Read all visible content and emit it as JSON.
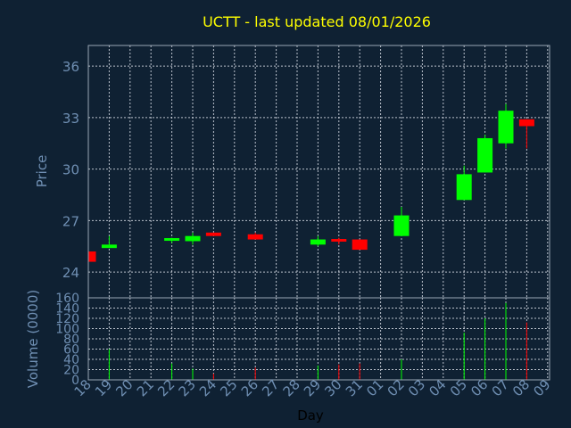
{
  "chart_data": {
    "type": "candlestick",
    "title": "UCTT - last updated 08/01/2026",
    "colors": {
      "background": "#0f2133",
      "up": "#00ff00",
      "down": "#ff0000",
      "title": "#ffff00",
      "axis_text": "#6f8fb3",
      "grid": "#d8dde6"
    },
    "price_panel": {
      "ylabel": "Price",
      "ylim": [
        22.5,
        37.2
      ],
      "yticks": [
        24,
        27,
        30,
        33,
        36
      ],
      "grid": true
    },
    "volume_panel": {
      "ylabel": "Volume (0000)",
      "ylim": [
        0,
        160
      ],
      "yticks": [
        0,
        20,
        40,
        60,
        80,
        100,
        120,
        140,
        160
      ],
      "grid": true
    },
    "xlabel": "Day",
    "x_tick_labels": [
      "18",
      "19",
      "20",
      "21",
      "22",
      "23",
      "24",
      "25",
      "26",
      "27",
      "28",
      "29",
      "30",
      "31",
      "01",
      "02",
      "03",
      "04",
      "05",
      "06",
      "07",
      "08",
      "09"
    ],
    "candles": [
      {
        "day": "18",
        "open": 25.2,
        "high": 25.2,
        "low": 24.6,
        "close": 24.6,
        "volume": 0
      },
      {
        "day": "19",
        "open": 25.4,
        "high": 26.1,
        "low": 25.4,
        "close": 25.6,
        "volume": 60
      },
      {
        "day": "22",
        "open": 25.9,
        "high": 26.0,
        "low": 25.7,
        "close": 25.9,
        "volume": 32
      },
      {
        "day": "23",
        "open": 25.8,
        "high": 26.3,
        "low": 25.6,
        "close": 26.1,
        "volume": 22
      },
      {
        "day": "24",
        "open": 26.3,
        "high": 26.3,
        "low": 26.1,
        "close": 26.1,
        "volume": 12
      },
      {
        "day": "26",
        "open": 26.2,
        "high": 26.3,
        "low": 25.9,
        "close": 25.9,
        "volume": 24
      },
      {
        "day": "29",
        "open": 25.6,
        "high": 26.1,
        "low": 25.5,
        "close": 25.9,
        "volume": 28
      },
      {
        "day": "30",
        "open": 25.9,
        "high": 26.0,
        "low": 25.6,
        "close": 25.8,
        "volume": 30
      },
      {
        "day": "31",
        "open": 25.9,
        "high": 25.9,
        "low": 25.3,
        "close": 25.3,
        "volume": 32
      },
      {
        "day": "02",
        "open": 26.1,
        "high": 27.8,
        "low": 26.1,
        "close": 27.3,
        "volume": 40
      },
      {
        "day": "05",
        "open": 28.2,
        "high": 30.2,
        "low": 28.2,
        "close": 29.7,
        "volume": 92
      },
      {
        "day": "06",
        "open": 29.8,
        "high": 32.0,
        "low": 29.8,
        "close": 31.8,
        "volume": 120
      },
      {
        "day": "07",
        "open": 31.5,
        "high": 33.8,
        "low": 31.2,
        "close": 33.4,
        "volume": 150
      },
      {
        "day": "08",
        "open": 32.9,
        "high": 32.9,
        "low": 31.2,
        "close": 32.5,
        "volume": 112
      }
    ]
  }
}
